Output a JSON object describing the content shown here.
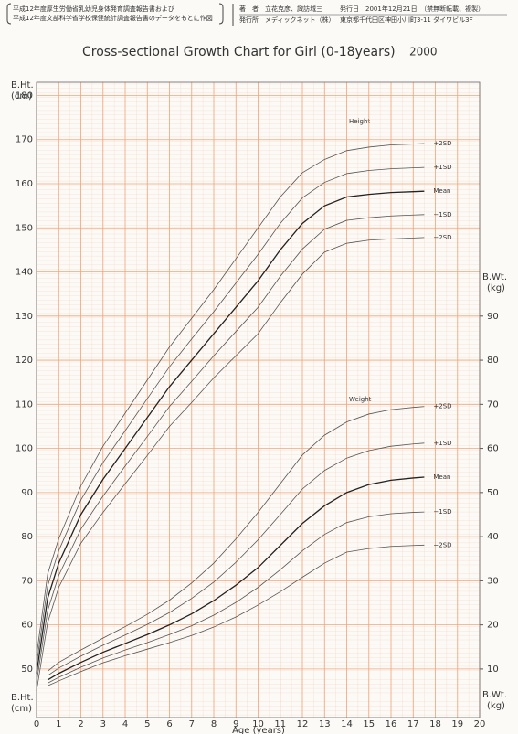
{
  "header": {
    "source_lines": [
      "平成12年度厚生労働省乳幼児身体発育調査報告書および",
      "平成12年度文部科学省学校保健統計調査報告書のデータをもとに作図"
    ],
    "author": "著　者　立花克彦、諏訪城三",
    "publisher": "発行所　メディックネット（株）",
    "date": "発行日　2001年12月21日　（禁無断転載、複製）",
    "address": "東京都千代田区神田小川町3-11 ダイワビル3F"
  },
  "chart_data": {
    "type": "line",
    "title": "Cross-sectional Growth Chart for Girl (0-18years)",
    "title_year": "2000",
    "y_label": "B.Ht.",
    "y_unit": "(cm)",
    "y2_label": "B.Wt.",
    "y2_unit": "(kg)",
    "x_label": "Age (years)",
    "annotations": [
      "Height",
      "Weight"
    ],
    "xlim": [
      0,
      20
    ],
    "xticks": [
      0,
      1,
      2,
      3,
      4,
      5,
      6,
      7,
      8,
      9,
      10,
      11,
      12,
      13,
      14,
      15,
      16,
      17,
      18,
      19,
      20
    ],
    "ylim": [
      39,
      183
    ],
    "yticks": [
      50,
      60,
      70,
      80,
      90,
      100,
      110,
      120,
      130,
      140,
      150,
      160,
      170,
      180
    ],
    "y2lim": [
      -1,
      143
    ],
    "y2ticks": [
      10,
      20,
      30,
      40,
      50,
      60,
      70,
      80,
      90
    ],
    "grid": true,
    "grid_color": "#f2a57a",
    "x": [
      0,
      0.5,
      1,
      2,
      3,
      4,
      5,
      6,
      7,
      8,
      9,
      10,
      11,
      12,
      13,
      14,
      15,
      16,
      17,
      17.5
    ],
    "series": [
      {
        "name": "+2SD",
        "color": "#555555",
        "axis": "y",
        "values": [
          53,
          71.5,
          79.5,
          91.5,
          100.5,
          108,
          115.5,
          123,
          129.5,
          136,
          143,
          150,
          157,
          162.5,
          165.5,
          167.5,
          168.3,
          168.8,
          169,
          169.1
        ]
      },
      {
        "name": "+1SD",
        "color": "#555555",
        "axis": "y",
        "values": [
          51,
          68.8,
          76.8,
          88.3,
          96.8,
          104,
          111.3,
          118.5,
          124.8,
          131,
          137.5,
          144,
          151,
          156.8,
          160.3,
          162.3,
          163,
          163.4,
          163.6,
          163.7
        ]
      },
      {
        "name": "Mean",
        "color": "#222222",
        "axis": "y",
        "values": [
          49,
          66,
          74,
          85,
          93,
          100,
          107,
          114,
          120,
          126,
          132,
          138,
          145,
          151,
          155,
          157,
          157.6,
          158,
          158.2,
          158.3
        ]
      },
      {
        "name": "−1SD",
        "color": "#555555",
        "axis": "y",
        "values": [
          47,
          63.2,
          71.2,
          81.7,
          89.2,
          96,
          102.7,
          109.5,
          115.2,
          121,
          126.5,
          132,
          139,
          145.2,
          149.7,
          151.7,
          152.3,
          152.7,
          152.9,
          153
        ]
      },
      {
        "name": "−2SD",
        "color": "#555555",
        "axis": "y",
        "values": [
          45,
          60.5,
          68.5,
          78.5,
          85.5,
          92,
          98.4,
          105,
          110.4,
          116,
          121,
          126,
          133,
          139.5,
          144.5,
          146.5,
          147.2,
          147.5,
          147.7,
          147.8
        ]
      },
      {
        "name": "+2SD",
        "color": "#555555",
        "axis": "y2",
        "values": [
          null,
          9.5,
          11.5,
          14.3,
          17,
          19.6,
          22.4,
          25.6,
          29.5,
          34,
          39.5,
          45.5,
          52,
          58.5,
          63,
          66,
          67.8,
          68.8,
          69.3,
          69.5
        ]
      },
      {
        "name": "+1SD",
        "color": "#555555",
        "axis": "y2",
        "values": [
          null,
          8.5,
          10.2,
          12.9,
          15.4,
          17.7,
          20.1,
          22.8,
          26,
          29.7,
          34.2,
          39.3,
          45,
          50.8,
          55,
          57.8,
          59.5,
          60.5,
          61,
          61.2
        ]
      },
      {
        "name": "Mean",
        "color": "#222222",
        "axis": "y2",
        "values": [
          null,
          7.5,
          9,
          11.5,
          13.8,
          15.8,
          17.8,
          20,
          22.5,
          25.5,
          29,
          33,
          38,
          43,
          47,
          50,
          51.8,
          52.8,
          53.3,
          53.5
        ]
      },
      {
        "name": "−1SD",
        "color": "#555555",
        "axis": "y2",
        "values": [
          null,
          6.8,
          8.1,
          10.4,
          12.5,
          14.3,
          16,
          17.8,
          19.8,
          22.2,
          25.1,
          28.5,
          32.5,
          36.8,
          40.5,
          43.2,
          44.5,
          45.2,
          45.5,
          45.6
        ]
      },
      {
        "name": "−2SD",
        "color": "#555555",
        "axis": "y2",
        "values": [
          null,
          6.2,
          7.3,
          9.4,
          11.4,
          13,
          14.5,
          16,
          17.6,
          19.5,
          21.8,
          24.5,
          27.5,
          30.8,
          34,
          36.5,
          37.3,
          37.8,
          38,
          38.1
        ]
      }
    ]
  }
}
